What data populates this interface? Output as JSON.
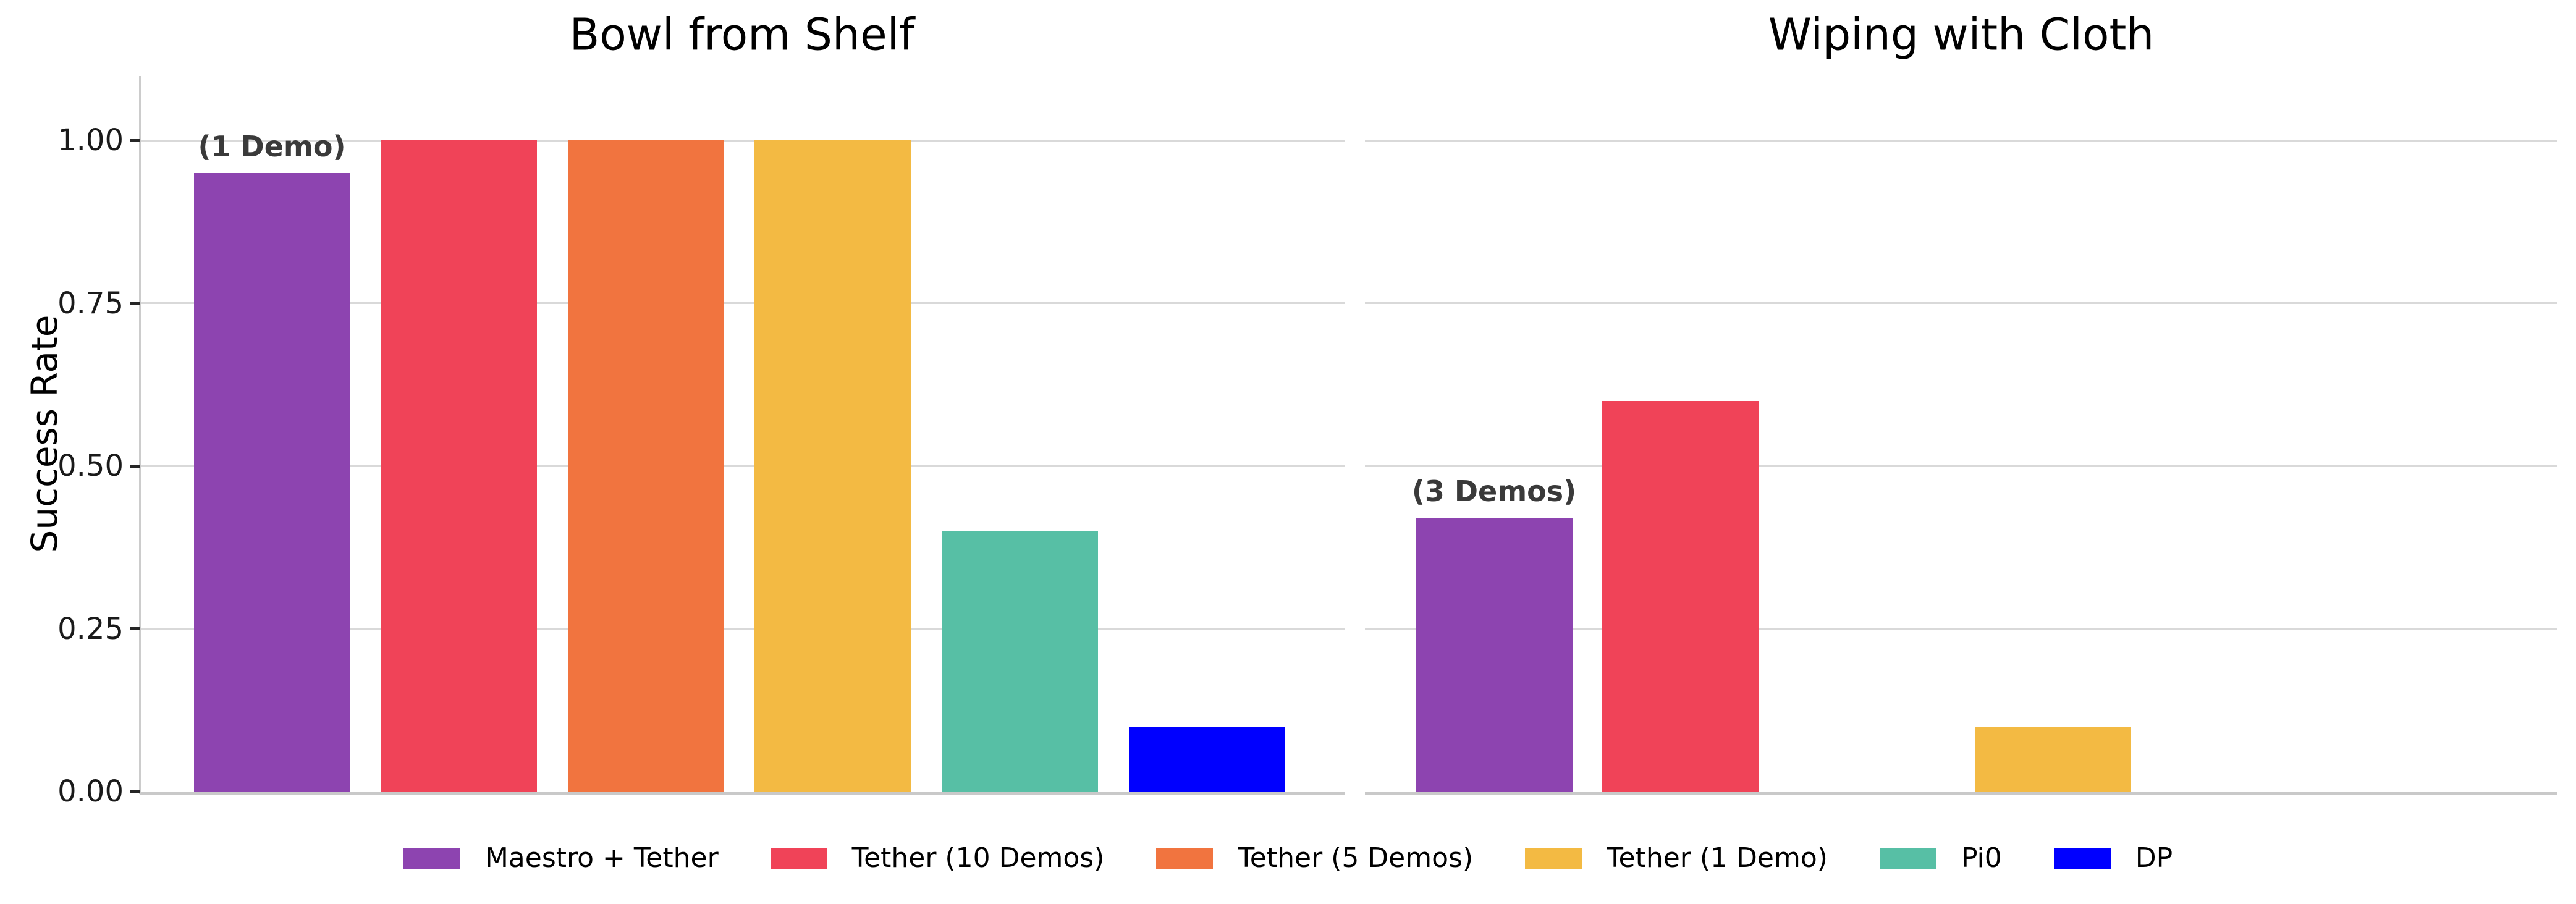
{
  "figure": {
    "background": "#ffffff",
    "ylabel": "Success Rate"
  },
  "legend": {
    "items": [
      {
        "label": "Maestro + Tether",
        "color": "#8D44B0"
      },
      {
        "label": "Tether (10 Demos)",
        "color": "#F04358"
      },
      {
        "label": "Tether (5 Demos)",
        "color": "#F1743F"
      },
      {
        "label": "Tether (1 Demo)",
        "color": "#F3BA43"
      },
      {
        "label": "Pi0",
        "color": "#57BFA5"
      },
      {
        "label": "DP",
        "color": "#0000FF"
      }
    ]
  },
  "chart_data": [
    {
      "type": "bar",
      "title": "Bowl from Shelf",
      "ylabel": "Success Rate",
      "xlabel": "",
      "ylim": [
        0,
        1.1
      ],
      "yticks": [
        0,
        0.25,
        0.5,
        0.75,
        1.0
      ],
      "ytick_labels": [
        "0.00",
        "0.25",
        "0.50",
        "0.75",
        "1.00"
      ],
      "grid": true,
      "legend_position": "bottom-center",
      "categories": [
        "Maestro + Tether",
        "Tether (10 Demos)",
        "Tether (5 Demos)",
        "Tether (1 Demo)",
        "Pi0",
        "DP"
      ],
      "values": [
        0.95,
        1.0,
        1.0,
        1.0,
        0.4,
        0.1
      ],
      "colors": [
        "#8D44B0",
        "#F04358",
        "#F1743F",
        "#F3BA43",
        "#57BFA5",
        "#0000FF"
      ],
      "annotations": [
        {
          "bar_index": 0,
          "text": "(1 Demo)"
        }
      ]
    },
    {
      "type": "bar",
      "title": "Wiping with Cloth",
      "xlabel": "",
      "ylim": [
        0,
        1.1
      ],
      "yticks": [
        0,
        0.25,
        0.5,
        0.75,
        1.0
      ],
      "ytick_labels": [
        "0.00",
        "0.25",
        "0.50",
        "0.75",
        "1.00"
      ],
      "grid": true,
      "categories": [
        "Maestro + Tether",
        "Tether (10 Demos)",
        "Tether (5 Demos)",
        "Tether (1 Demo)",
        "Pi0",
        "DP"
      ],
      "values": [
        0.42,
        0.6,
        0.0,
        0.1,
        0.0,
        0.0
      ],
      "colors": [
        "#8D44B0",
        "#F04358",
        "#F1743F",
        "#F3BA43",
        "#57BFA5",
        "#0000FF"
      ],
      "annotations": [
        {
          "bar_index": 0,
          "text": "(3 Demos)"
        }
      ]
    }
  ]
}
